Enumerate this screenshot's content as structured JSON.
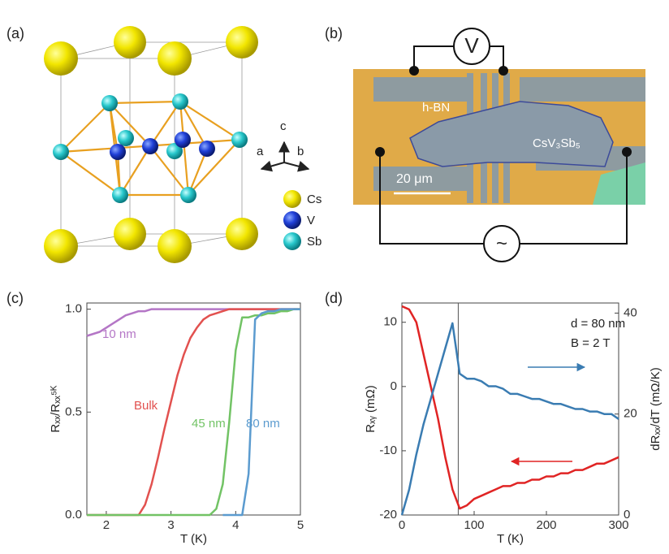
{
  "panels": {
    "labels": [
      "(a)",
      "(b)",
      "(c)",
      "(d)"
    ]
  },
  "structure": {
    "axis_labels": [
      "c",
      "a",
      "b"
    ],
    "legend": [
      "Cs",
      "V",
      "Sb"
    ]
  },
  "device": {
    "hbn": "h-BN",
    "crystal": "CsV₃Sb₅",
    "scale_bar": "20 μm",
    "meter": "V",
    "source": "~"
  },
  "chart_data": [
    {
      "type": "line",
      "xlabel": "T (K)",
      "ylabel": "Rₓₓ/Rₓₓ⁵ᴷ",
      "x": [
        1.7,
        1.8,
        1.9,
        2.0,
        2.1,
        2.2,
        2.3,
        2.4,
        2.5,
        2.6,
        2.7,
        2.8,
        2.9,
        3.0,
        3.1,
        3.2,
        3.3,
        3.4,
        3.5,
        3.6,
        3.7,
        3.8,
        3.9,
        4.0,
        4.1,
        4.2,
        4.3,
        4.4,
        4.5,
        4.6,
        4.7,
        4.8,
        4.9,
        5.0
      ],
      "xlim": [
        1.7,
        5
      ],
      "xticks": [
        2,
        3,
        4,
        5
      ],
      "ylim": [
        0,
        1.03
      ],
      "yticks": [
        {
          "value": 0,
          "label": "0.0"
        },
        {
          "value": 0.5,
          "label": "0.5"
        },
        {
          "value": 1,
          "label": "1.0"
        }
      ],
      "series": [
        {
          "name": "10 nm",
          "color": "#b476c6",
          "values": [
            0.87,
            0.88,
            0.89,
            0.91,
            0.93,
            0.95,
            0.97,
            0.98,
            0.99,
            0.99,
            1,
            1,
            1,
            1,
            1,
            1,
            1,
            1,
            1,
            1,
            1,
            1,
            1,
            1,
            1,
            1,
            1,
            1,
            1,
            1,
            1,
            1,
            1,
            1
          ]
        },
        {
          "name": "Bulk",
          "color": "#e2514f",
          "values": [
            0,
            0,
            0,
            0,
            0,
            0,
            0,
            0,
            0,
            0.05,
            0.15,
            0.28,
            0.42,
            0.55,
            0.68,
            0.78,
            0.86,
            0.91,
            0.95,
            0.97,
            0.98,
            0.99,
            1,
            1,
            1,
            1,
            1,
            1,
            1,
            1,
            1,
            1,
            1,
            1
          ]
        },
        {
          "name": "45 nm",
          "color": "#72c365",
          "values": [
            0,
            0,
            0,
            0,
            0,
            0,
            0,
            0,
            0,
            0,
            0,
            0,
            0,
            0,
            0,
            0,
            0,
            0,
            0,
            0,
            0.03,
            0.15,
            0.45,
            0.8,
            0.96,
            0.96,
            0.97,
            0.97,
            0.98,
            0.98,
            0.99,
            0.99,
            1,
            1
          ]
        },
        {
          "name": "80 nm",
          "color": "#5b9bcf",
          "values": [
            null,
            null,
            null,
            null,
            null,
            null,
            null,
            null,
            null,
            null,
            null,
            null,
            null,
            null,
            null,
            null,
            null,
            null,
            null,
            null,
            null,
            0,
            0,
            0,
            0,
            0.2,
            0.95,
            0.98,
            0.99,
            0.99,
            1,
            1,
            1,
            1
          ]
        }
      ]
    },
    {
      "type": "line",
      "xlabel": "T (K)",
      "ylabel": "Rₓᵧ (mΩ)",
      "y2label": "dRₓₓ/dT (mΩ/K)",
      "annotations": [
        "d = 80 nm",
        "B = 2 T"
      ],
      "vline": 78,
      "x": [
        0,
        10,
        20,
        30,
        40,
        50,
        60,
        70,
        80,
        90,
        100,
        110,
        120,
        130,
        140,
        150,
        160,
        170,
        180,
        190,
        200,
        210,
        220,
        230,
        240,
        250,
        260,
        270,
        280,
        290,
        300
      ],
      "xlim": [
        0,
        300
      ],
      "xticks": [
        0,
        100,
        200,
        300
      ],
      "ylim": [
        -20,
        13
      ],
      "yticks": [
        -20,
        -10,
        0,
        10
      ],
      "y2lim": [
        0,
        42
      ],
      "y2ticks": [
        0,
        20,
        40
      ],
      "series": [
        {
          "name": "Rxy",
          "color": "#e02424",
          "values": [
            12.5,
            12,
            10,
            5,
            0,
            -5,
            -11,
            -16,
            -19,
            -18.5,
            -17.5,
            -17,
            -16.5,
            -16,
            -15.5,
            -15.5,
            -15,
            -15,
            -14.5,
            -14.5,
            -14,
            -14,
            -13.5,
            -13.5,
            -13,
            -13,
            -12.5,
            -12,
            -12,
            -11.5,
            -11
          ]
        },
        {
          "name": "dRxx/dT",
          "color": "#3a7cb2",
          "axis": "y2",
          "values": [
            0,
            5,
            12,
            18,
            23,
            28,
            33,
            38,
            28,
            27,
            27,
            26.5,
            25.5,
            25.5,
            25,
            24,
            24,
            23.5,
            23,
            23,
            22.5,
            22,
            22,
            21.5,
            21,
            21,
            20.5,
            20.5,
            20,
            20,
            19
          ]
        }
      ]
    }
  ]
}
